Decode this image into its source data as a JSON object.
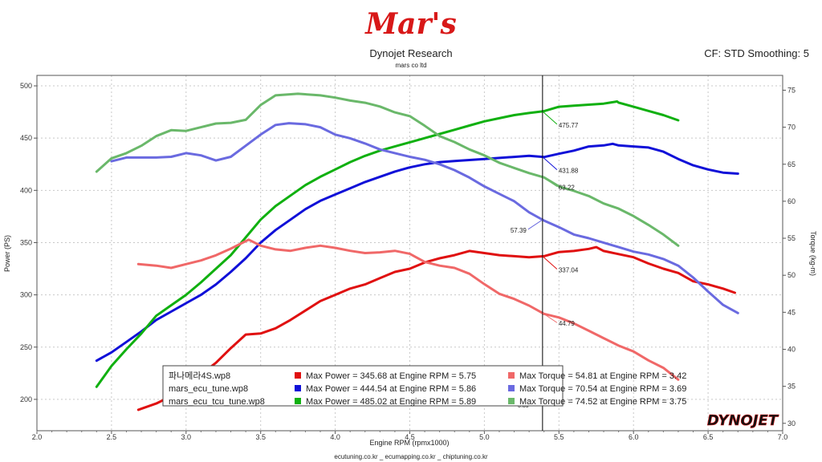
{
  "header": {
    "logo_text": "Mar's",
    "title": "Dynojet Research",
    "subtitle": "mars co ltd",
    "cf_info": "CF: STD Smoothing: 5"
  },
  "footer": {
    "links": "ecutuning.co.kr _ ecumapping.co.kr _ chiptuning.co.kr",
    "brand": "DYNOJET"
  },
  "cursor": {
    "rpm": 5.39,
    "label": "5.39"
  },
  "chart_data": {
    "type": "line",
    "xlabel": "Engine RPM (rpmx1000)",
    "ylabel": "Power (PS)",
    "ylabel_right": "Torque (kg-m)",
    "xlim": [
      2.0,
      7.0
    ],
    "ylim": [
      170,
      510
    ],
    "ylim_right": [
      29,
      77
    ],
    "x_ticks": [
      2.0,
      2.5,
      3.0,
      3.5,
      4.0,
      4.5,
      5.0,
      5.5,
      6.0,
      6.5,
      7.0
    ],
    "y_ticks": [
      200,
      250,
      300,
      350,
      400,
      450,
      500
    ],
    "y_ticks_right": [
      30,
      35,
      40,
      45,
      50,
      55,
      60,
      65,
      70,
      75
    ],
    "grid": true,
    "legend_position": "bottom-center",
    "series": [
      {
        "name": "파나메라4S.wp8",
        "kind": "power",
        "axis": "left",
        "color": "#e01010",
        "cursor_value": "337.04",
        "x": [
          2.68,
          2.8,
          2.9,
          3.0,
          3.1,
          3.2,
          3.3,
          3.4,
          3.5,
          3.6,
          3.7,
          3.8,
          3.9,
          4.0,
          4.1,
          4.2,
          4.3,
          4.4,
          4.5,
          4.6,
          4.7,
          4.8,
          4.9,
          5.0,
          5.1,
          5.2,
          5.3,
          5.4,
          5.5,
          5.6,
          5.7,
          5.75,
          5.8,
          5.9,
          6.0,
          6.1,
          6.2,
          6.3,
          6.4,
          6.5,
          6.6,
          6.68
        ],
        "y": [
          190,
          196,
          203,
          213,
          224,
          235,
          249,
          262,
          263,
          268,
          276,
          285,
          294,
          300,
          306,
          310,
          316,
          322,
          325,
          331,
          335,
          338,
          342,
          340,
          338,
          337,
          336,
          337,
          341,
          342,
          344,
          345.68,
          342,
          339,
          336,
          330,
          325,
          321,
          313,
          310,
          306,
          302
        ]
      },
      {
        "name": "mars_ecu_tune.wp8",
        "kind": "power",
        "axis": "left",
        "color": "#1010d8",
        "cursor_value": "431.88",
        "x": [
          2.4,
          2.5,
          2.6,
          2.7,
          2.8,
          2.9,
          3.0,
          3.1,
          3.2,
          3.3,
          3.4,
          3.5,
          3.6,
          3.7,
          3.8,
          3.9,
          4.0,
          4.1,
          4.2,
          4.3,
          4.4,
          4.5,
          4.6,
          4.7,
          4.8,
          4.9,
          5.0,
          5.1,
          5.2,
          5.3,
          5.4,
          5.5,
          5.6,
          5.7,
          5.8,
          5.86,
          5.9,
          6.0,
          6.1,
          6.2,
          6.3,
          6.4,
          6.5,
          6.6,
          6.7
        ],
        "y": [
          237,
          245,
          255,
          265,
          276,
          284,
          292,
          300,
          310,
          322,
          335,
          350,
          362,
          372,
          382,
          390,
          396,
          402,
          408,
          413,
          418,
          422,
          425,
          427,
          428,
          429,
          430,
          431,
          432,
          433,
          431.88,
          435,
          438,
          442,
          443,
          444.54,
          443,
          442,
          441,
          437,
          430,
          424,
          420,
          417,
          416
        ]
      },
      {
        "name": "mars_ecu_tcu_tune.wp8",
        "kind": "power",
        "axis": "left",
        "color": "#10b010",
        "cursor_value": "475.77",
        "x": [
          2.4,
          2.5,
          2.6,
          2.7,
          2.8,
          2.9,
          3.0,
          3.1,
          3.2,
          3.3,
          3.4,
          3.5,
          3.6,
          3.7,
          3.8,
          3.9,
          4.0,
          4.1,
          4.2,
          4.3,
          4.4,
          4.5,
          4.6,
          4.7,
          4.8,
          4.9,
          5.0,
          5.1,
          5.2,
          5.3,
          5.4,
          5.5,
          5.6,
          5.7,
          5.8,
          5.89,
          5.9,
          6.0,
          6.1,
          6.2,
          6.3
        ],
        "y": [
          212,
          232,
          248,
          263,
          280,
          290,
          300,
          312,
          325,
          338,
          355,
          372,
          385,
          395,
          405,
          413,
          420,
          427,
          433,
          438,
          442,
          446,
          450,
          454,
          458,
          462,
          466,
          469,
          472,
          474,
          475.77,
          480,
          481,
          482,
          483,
          485.02,
          484,
          480,
          476,
          472,
          467
        ]
      },
      {
        "name": "파나메라4S.wp8",
        "kind": "torque",
        "axis": "right",
        "color": "#f06868",
        "cursor_value": "44.79",
        "x": [
          2.68,
          2.8,
          2.9,
          3.0,
          3.1,
          3.2,
          3.3,
          3.42,
          3.5,
          3.6,
          3.7,
          3.8,
          3.9,
          4.0,
          4.1,
          4.2,
          4.3,
          4.4,
          4.5,
          4.6,
          4.7,
          4.8,
          4.9,
          5.0,
          5.1,
          5.2,
          5.3,
          5.4,
          5.5,
          5.6,
          5.7,
          5.8,
          5.9,
          6.0,
          6.1,
          6.2,
          6.3
        ],
        "y": [
          51.5,
          51.3,
          51.0,
          51.5,
          52.0,
          52.7,
          53.6,
          54.81,
          54.0,
          53.5,
          53.3,
          53.7,
          54.0,
          53.7,
          53.3,
          53.0,
          53.1,
          53.3,
          52.9,
          51.8,
          51.3,
          51.0,
          50.2,
          48.8,
          47.5,
          46.8,
          45.9,
          44.79,
          44.3,
          43.5,
          42.5,
          41.5,
          40.5,
          39.7,
          38.5,
          37.5,
          35.9
        ]
      },
      {
        "name": "mars_ecu_tune.wp8",
        "kind": "torque",
        "axis": "right",
        "color": "#6a6ae0",
        "cursor_value": "57.39",
        "x": [
          2.5,
          2.6,
          2.7,
          2.8,
          2.9,
          3.0,
          3.1,
          3.2,
          3.3,
          3.4,
          3.5,
          3.6,
          3.69,
          3.8,
          3.9,
          4.0,
          4.1,
          4.2,
          4.3,
          4.4,
          4.5,
          4.6,
          4.7,
          4.8,
          4.9,
          5.0,
          5.1,
          5.2,
          5.3,
          5.4,
          5.5,
          5.6,
          5.7,
          5.8,
          5.9,
          6.0,
          6.1,
          6.2,
          6.3,
          6.4,
          6.5,
          6.6,
          6.7
        ],
        "y": [
          65.4,
          65.9,
          65.9,
          65.9,
          66.0,
          66.5,
          66.2,
          65.5,
          66.0,
          67.5,
          69.0,
          70.3,
          70.54,
          70.4,
          70.0,
          69.0,
          68.5,
          67.8,
          67.0,
          66.5,
          66.0,
          65.6,
          65.0,
          64.2,
          63.2,
          62.0,
          61.0,
          60.0,
          58.5,
          57.39,
          56.5,
          55.5,
          55.0,
          54.4,
          53.8,
          53.2,
          52.8,
          52.2,
          51.3,
          49.7,
          47.8,
          46.0,
          44.9
        ]
      },
      {
        "name": "mars_ecu_tcu_tune.wp8",
        "kind": "torque",
        "axis": "right",
        "color": "#6ab86a",
        "cursor_value": "63.22",
        "x": [
          2.4,
          2.5,
          2.6,
          2.7,
          2.8,
          2.9,
          3.0,
          3.1,
          3.2,
          3.3,
          3.4,
          3.5,
          3.6,
          3.75,
          3.9,
          4.0,
          4.1,
          4.2,
          4.3,
          4.4,
          4.5,
          4.6,
          4.7,
          4.8,
          4.9,
          5.0,
          5.1,
          5.2,
          5.3,
          5.4,
          5.5,
          5.6,
          5.7,
          5.8,
          5.9,
          6.0,
          6.1,
          6.2,
          6.3
        ],
        "y": [
          64.0,
          65.8,
          66.5,
          67.5,
          68.8,
          69.6,
          69.5,
          70.0,
          70.5,
          70.6,
          71.0,
          73.0,
          74.3,
          74.52,
          74.3,
          74.0,
          73.6,
          73.3,
          72.8,
          72.0,
          71.5,
          70.2,
          68.8,
          68.0,
          67.0,
          66.2,
          65.2,
          64.5,
          63.8,
          63.22,
          62.0,
          61.4,
          60.7,
          59.7,
          59.0,
          58.0,
          56.8,
          55.5,
          54.0
        ]
      }
    ],
    "legend": [
      {
        "file": "파나메라4S.wp8",
        "color": "#e01010",
        "power": "Max Power = 345.68 at Engine RPM = 5.75",
        "torque_color": "#f06868",
        "torque": "Max Torque = 54.81 at Engine RPM = 3.42"
      },
      {
        "file": "mars_ecu_tune.wp8",
        "color": "#1010d8",
        "power": "Max Power = 444.54 at Engine RPM = 5.86",
        "torque_color": "#6a6ae0",
        "torque": "Max Torque = 70.54 at Engine RPM = 3.69"
      },
      {
        "file": "mars_ecu_tcu_tune.wp8",
        "color": "#10b010",
        "power": "Max Power = 485.02 at Engine RPM = 5.89",
        "torque_color": "#6ab86a",
        "torque": "Max Torque = 74.52 at Engine RPM = 3.75"
      }
    ]
  }
}
